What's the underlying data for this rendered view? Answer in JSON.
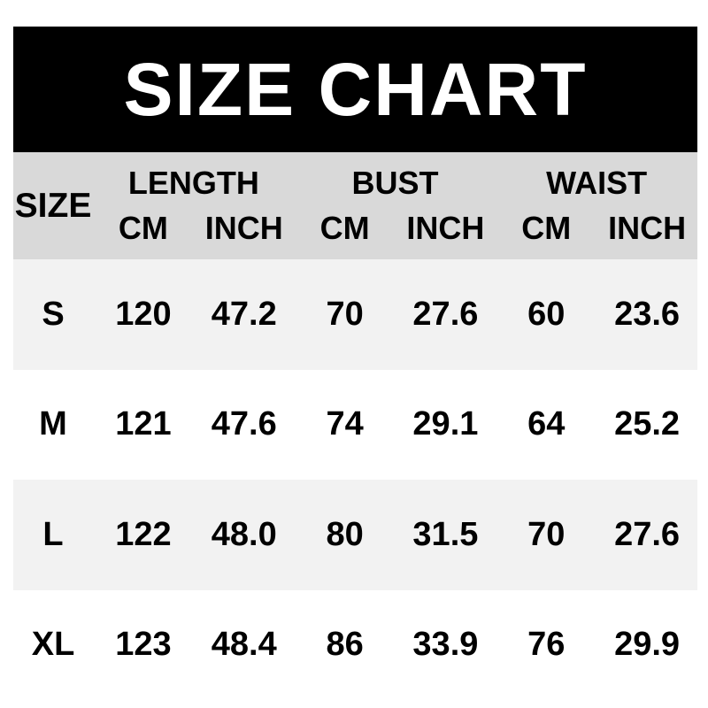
{
  "title": "SIZE CHART",
  "header": {
    "size_label": "SIZE",
    "groups": [
      "LENGTH",
      "BUST",
      "WAIST"
    ],
    "units": [
      "CM",
      "INCH",
      "CM",
      "INCH",
      "CM",
      "INCH"
    ]
  },
  "rows": [
    {
      "size": "S",
      "values": [
        "120",
        "47.2",
        "70",
        "27.6",
        "60",
        "23.6"
      ]
    },
    {
      "size": "M",
      "values": [
        "121",
        "47.6",
        "74",
        "29.1",
        "64",
        "25.2"
      ]
    },
    {
      "size": "L",
      "values": [
        "122",
        "48.0",
        "80",
        "31.5",
        "70",
        "27.6"
      ]
    },
    {
      "size": "XL",
      "values": [
        "123",
        "48.4",
        "86",
        "33.9",
        "76",
        "29.9"
      ]
    }
  ],
  "colors": {
    "title_bg": "#000000",
    "title_text": "#ffffff",
    "header_bg": "#d9d9d9",
    "row_shaded_bg": "#f2f2f2",
    "row_plain_bg": "#ffffff",
    "text": "#000000"
  },
  "chart_data": {
    "type": "table",
    "title": "SIZE CHART",
    "columns": [
      "SIZE",
      "LENGTH CM",
      "LENGTH INCH",
      "BUST CM",
      "BUST INCH",
      "WAIST CM",
      "WAIST INCH"
    ],
    "rows": [
      [
        "S",
        120,
        47.2,
        70,
        27.6,
        60,
        23.6
      ],
      [
        "M",
        121,
        47.6,
        74,
        29.1,
        64,
        25.2
      ],
      [
        "L",
        122,
        48.0,
        80,
        31.5,
        70,
        27.6
      ],
      [
        "XL",
        123,
        48.4,
        86,
        33.9,
        76,
        29.9
      ]
    ],
    "layout": {
      "header_tiers": 2,
      "row_striping": "shaded-plain-alternating",
      "units_row": [
        "CM",
        "INCH",
        "CM",
        "INCH",
        "CM",
        "INCH"
      ]
    }
  }
}
